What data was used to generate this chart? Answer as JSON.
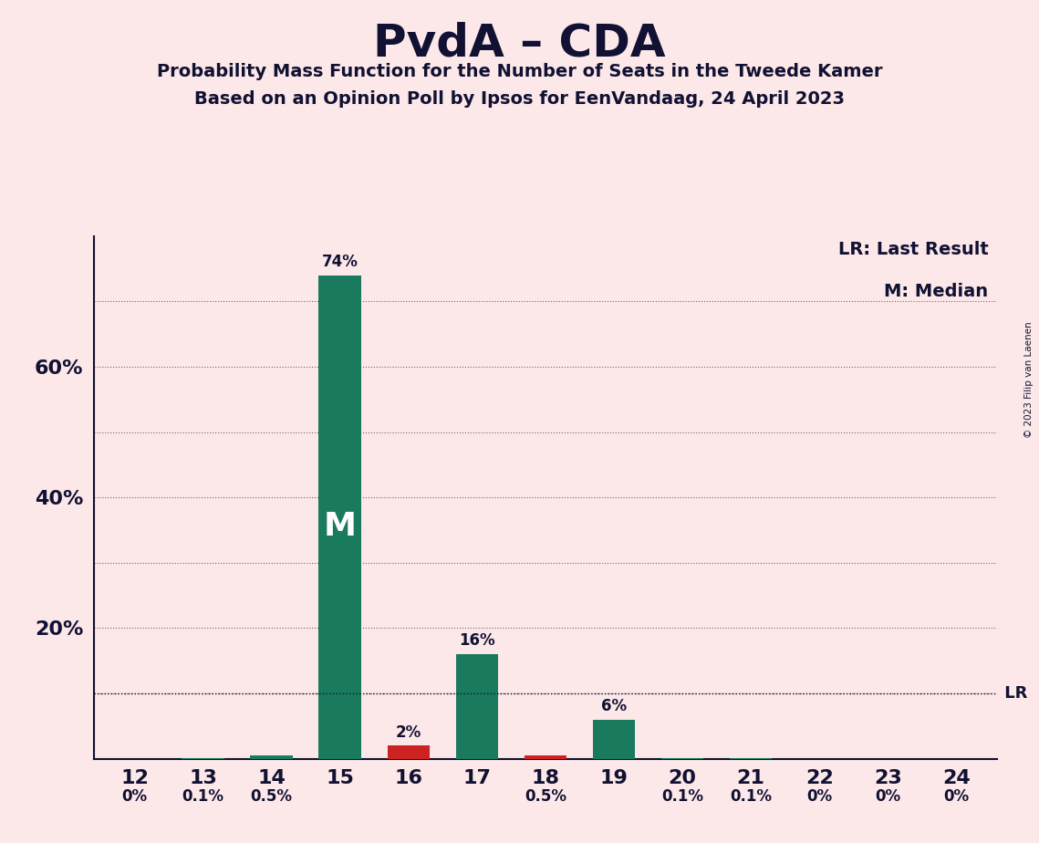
{
  "title": "PvdA – CDA",
  "subtitle1": "Probability Mass Function for the Number of Seats in the Tweede Kamer",
  "subtitle2": "Based on an Opinion Poll by Ipsos for EenVandaag, 24 April 2023",
  "copyright": "© 2023 Filip van Laenen",
  "categories": [
    12,
    13,
    14,
    15,
    16,
    17,
    18,
    19,
    20,
    21,
    22,
    23,
    24
  ],
  "values": [
    0.0,
    0.1,
    0.5,
    74.0,
    2.0,
    16.0,
    0.5,
    6.0,
    0.1,
    0.1,
    0.0,
    0.0,
    0.0
  ],
  "labels": [
    "0%",
    "0.1%",
    "0.5%",
    "74%",
    "2%",
    "16%",
    "0.5%",
    "6%",
    "0.1%",
    "0.1%",
    "0%",
    "0%",
    "0%"
  ],
  "bar_color_green": "#1a7a5e",
  "bar_color_red": "#cc2222",
  "bar_colors_flag": [
    0,
    0,
    0,
    0,
    1,
    0,
    1,
    0,
    0,
    0,
    0,
    0,
    0
  ],
  "median_seat": 15,
  "lr_value": 10.0,
  "background_color": "#fce8e8",
  "ytick_labels": [
    "20%",
    "40%",
    "60%"
  ],
  "ytick_values": [
    20,
    40,
    60
  ],
  "grid_values": [
    10,
    20,
    30,
    40,
    50,
    60,
    70
  ],
  "ylim": [
    0,
    80
  ],
  "legend_lr": "LR: Last Result",
  "legend_m": "M: Median",
  "text_color": "#111133"
}
